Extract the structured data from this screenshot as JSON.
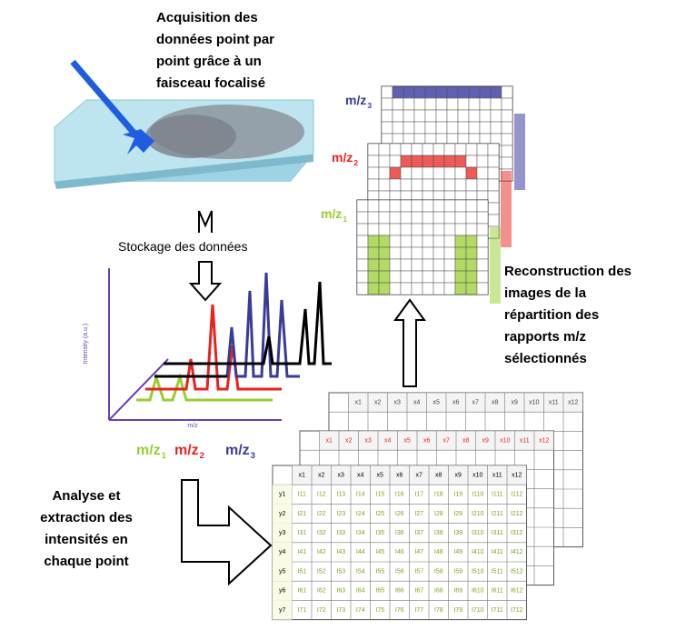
{
  "acquisition": {
    "lines": [
      "Acquisition des",
      "données point par",
      "point grâce à un",
      "faisceau focalisé"
    ]
  },
  "storage_label": "Stockage des données",
  "spectrum": {
    "y_label": "Intensity (a.u.)",
    "x_label": "m/z"
  },
  "mz_labels": [
    {
      "text": "m/z",
      "sub": "1",
      "color": "#9acd32"
    },
    {
      "text": "m/z",
      "sub": "2",
      "color": "#e8231e"
    },
    {
      "text": "m/z",
      "sub": "3",
      "color": "#3a3a9a"
    }
  ],
  "reconstruction": {
    "lines": [
      "Reconstruction des",
      "images de la",
      "répartition des",
      "rapports m/z",
      "sélectionnés"
    ]
  },
  "analysis": {
    "lines": [
      "Analyse et",
      "extraction des",
      "intensités en",
      "chaque point"
    ]
  },
  "table": {
    "columns": [
      "x1",
      "x2",
      "x3",
      "x4",
      "x5",
      "x6",
      "x7",
      "x8",
      "x9",
      "x10",
      "x11",
      "x12"
    ],
    "rows": [
      {
        "label": "y1",
        "cells": [
          "I11",
          "I12",
          "I13",
          "I14",
          "I15",
          "I16",
          "I17",
          "I18",
          "I19",
          "I110",
          "I111",
          "I112"
        ]
      },
      {
        "label": "y2",
        "cells": [
          "I21",
          "I22",
          "I23",
          "I24",
          "I25",
          "I26",
          "I27",
          "I28",
          "I29",
          "I210",
          "I211",
          "I212"
        ]
      },
      {
        "label": "y3",
        "cells": [
          "I31",
          "I32",
          "I33",
          "I34",
          "I35",
          "I36",
          "I37",
          "I38",
          "I39",
          "I310",
          "I311",
          "I312"
        ]
      },
      {
        "label": "y4",
        "cells": [
          "I41",
          "I42",
          "I43",
          "I44",
          "I45",
          "I46",
          "I47",
          "I48",
          "I49",
          "I410",
          "I411",
          "I412"
        ]
      },
      {
        "label": "y5",
        "cells": [
          "I51",
          "I52",
          "I53",
          "I54",
          "I55",
          "I56",
          "I57",
          "I58",
          "I59",
          "I510",
          "I511",
          "I512"
        ]
      },
      {
        "label": "y6",
        "cells": [
          "I61",
          "I62",
          "I63",
          "I64",
          "I65",
          "I66",
          "I67",
          "I68",
          "I69",
          "I610",
          "I611",
          "I612"
        ]
      },
      {
        "label": "y7",
        "cells": [
          "I71",
          "I72",
          "I73",
          "I74",
          "I75",
          "I76",
          "I77",
          "I78",
          "I79",
          "I710",
          "I711",
          "I712"
        ]
      }
    ]
  }
}
